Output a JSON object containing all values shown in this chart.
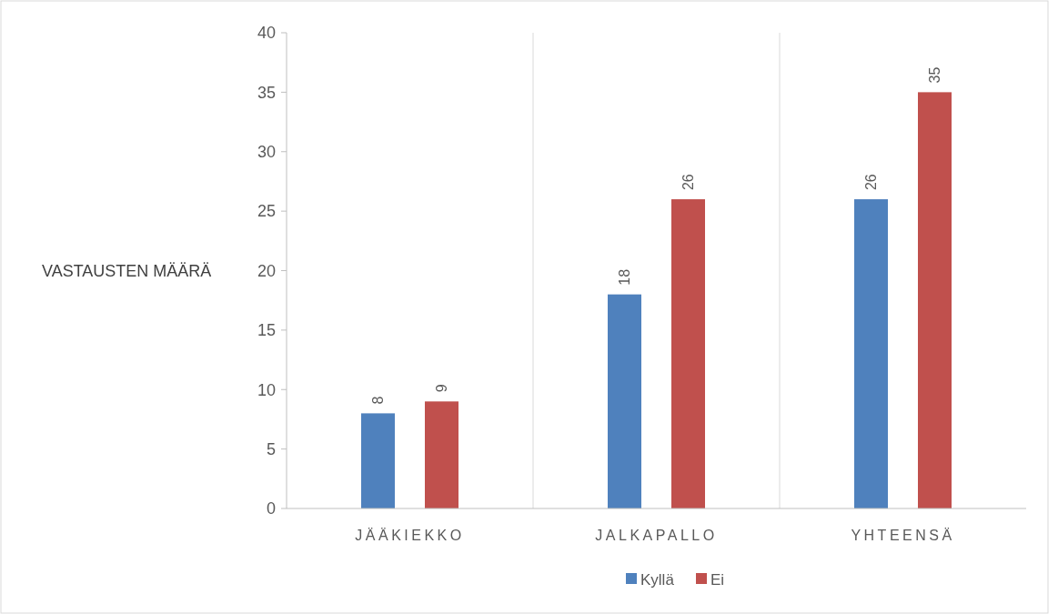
{
  "chart_data": {
    "type": "bar",
    "ylabel": "VASTAUSTEN MÄÄRÄ",
    "categories": [
      "JÄÄKIEKKO",
      "JALKAPALLO",
      "YHTEENSÄ"
    ],
    "series": [
      {
        "name": "Kyllä",
        "color": "#4f81bd",
        "values": [
          8,
          18,
          26
        ]
      },
      {
        "name": "Ei",
        "color": "#c0504d",
        "values": [
          9,
          26,
          35
        ]
      }
    ],
    "ylim": [
      0,
      40
    ],
    "yticks": [
      0,
      5,
      10,
      15,
      20,
      25,
      30,
      35,
      40
    ],
    "grid": "x",
    "legend": "bottom",
    "data_labels": true
  }
}
